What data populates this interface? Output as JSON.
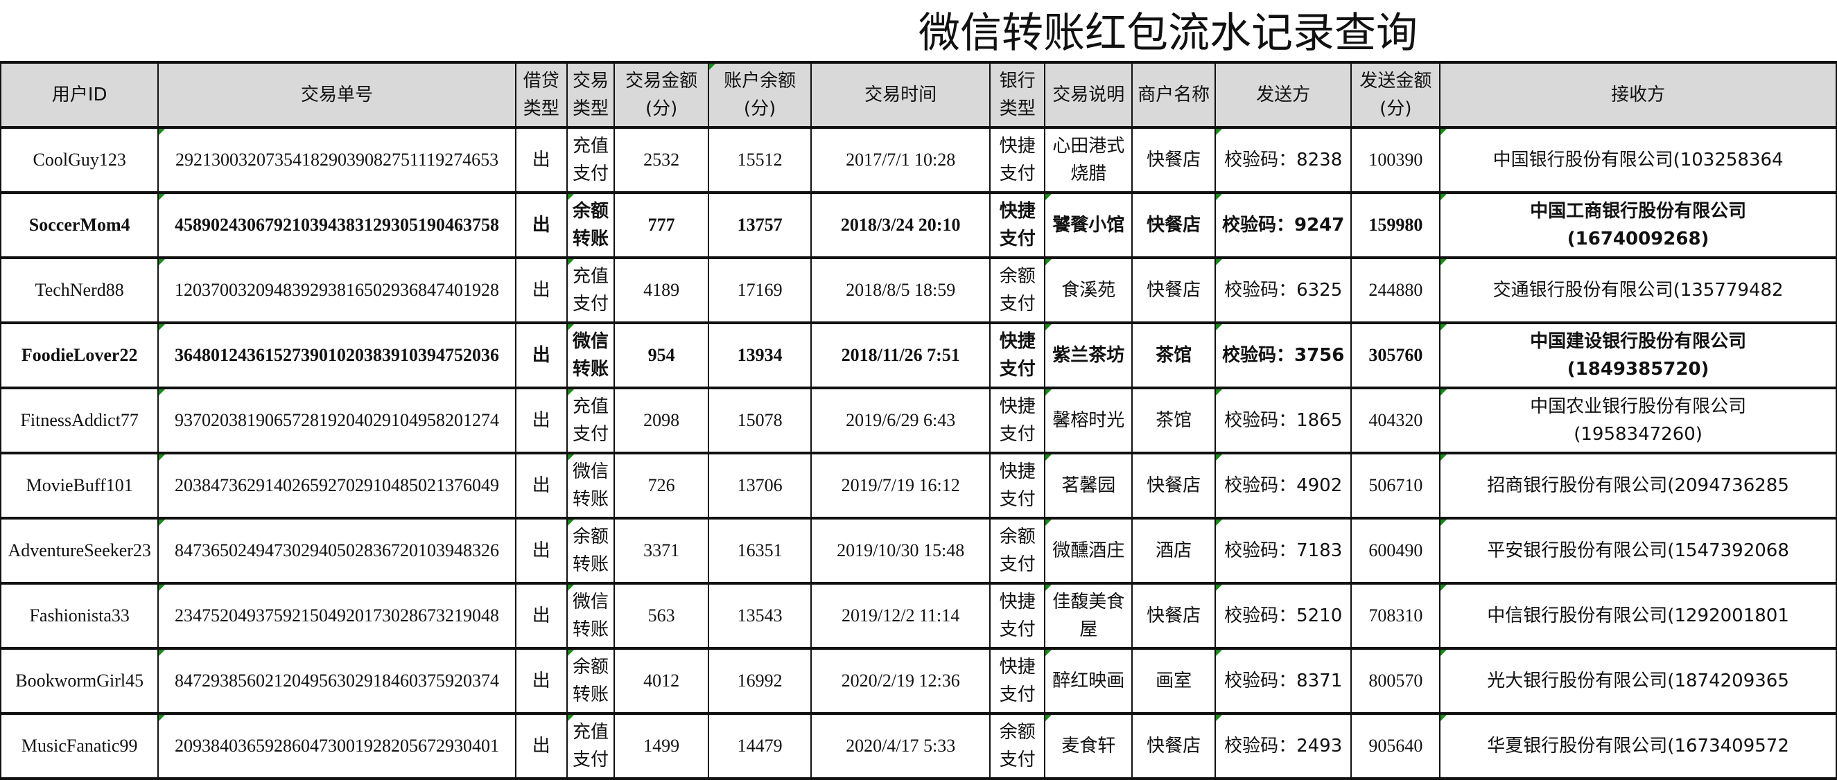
{
  "title": "微信转账红包流水记录查询",
  "indicator_color": "#1a8a1a",
  "header_bg": "#d9d9d9",
  "bold_rows": [
    1,
    3
  ],
  "columns": [
    "用户ID",
    "交易单号",
    "借贷\n类型",
    "交易\n类型",
    "交易金额\n(分)",
    "账户余额\n(分)",
    "交易时间",
    "银行\n类型",
    "交易说明",
    "商户名称",
    "发送方",
    "发送金额\n(分)",
    "接收方"
  ],
  "rows": [
    [
      "CoolGuy123",
      "292130032073541829039082751119274653",
      "出",
      "充值支付",
      "2532",
      "15512",
      "2017/7/1 10:28",
      "快捷支付",
      "心田港式烧腊",
      "快餐店",
      "校验码：8238",
      "100390",
      "中国银行股份有限公司(103258364"
    ],
    [
      "SoccerMom4",
      "458902430679210394383129305190463758",
      "出",
      "余额转账",
      "777",
      "13757",
      "2018/3/24 20:10",
      "快捷支付",
      "饕餮小馆",
      "快餐店",
      "校验码：9247",
      "159980",
      "中国工商银行股份有限公司\n(1674009268)"
    ],
    [
      "TechNerd88",
      "120370032094839293816502936847401928",
      "出",
      "充值支付",
      "4189",
      "17169",
      "2018/8/5 18:59",
      "余额支付",
      "食溪苑",
      "快餐店",
      "校验码：6325",
      "244880",
      "交通银行股份有限公司(135779482"
    ],
    [
      "FoodieLover22",
      "364801243615273901020383910394752036",
      "出",
      "微信转账",
      "954",
      "13934",
      "2018/11/26 7:51",
      "快捷支付",
      "紫兰茶坊",
      "茶馆",
      "校验码：3756",
      "305760",
      "中国建设银行股份有限公司\n(1849385720)"
    ],
    [
      "FitnessAddict77",
      "937020381906572819204029104958201274",
      "出",
      "充值支付",
      "2098",
      "15078",
      "2019/6/29 6:43",
      "快捷支付",
      "馨榕时光",
      "茶馆",
      "校验码：1865",
      "404320",
      "中国农业银行股份有限公司\n(1958347260)"
    ],
    [
      "MovieBuff101",
      "203847362914026592702910485021376049",
      "出",
      "微信转账",
      "726",
      "13706",
      "2019/7/19 16:12",
      "快捷支付",
      "茗馨园",
      "快餐店",
      "校验码：4902",
      "506710",
      "招商银行股份有限公司(2094736285"
    ],
    [
      "AdventureSeeker23",
      "847365024947302940502836720103948326",
      "出",
      "余额转账",
      "3371",
      "16351",
      "2019/10/30 15:48",
      "余额支付",
      "微醺酒庄",
      "酒店",
      "校验码：7183",
      "600490",
      "平安银行股份有限公司(1547392068"
    ],
    [
      "Fashionista33",
      "234752049375921504920173028673219048",
      "出",
      "微信转账",
      "563",
      "13543",
      "2019/12/2 11:14",
      "快捷支付",
      "佳馥美食屋",
      "快餐店",
      "校验码：5210",
      "708310",
      "中信银行股份有限公司(1292001801"
    ],
    [
      "BookwormGirl45",
      "847293856021204956302918460375920374",
      "出",
      "余额转账",
      "4012",
      "16992",
      "2020/2/19 12:36",
      "快捷支付",
      "醉红映画",
      "画室",
      "校验码：8371",
      "800570",
      "光大银行股份有限公司(1874209365"
    ],
    [
      "MusicFanatic99",
      "209384036592860473001928205672930401",
      "出",
      "充值支付",
      "1499",
      "14479",
      "2020/4/17 5:33",
      "余额支付",
      "麦食轩",
      "快餐店",
      "校验码：2493",
      "905640",
      "华夏银行股份有限公司(1673409572"
    ]
  ]
}
